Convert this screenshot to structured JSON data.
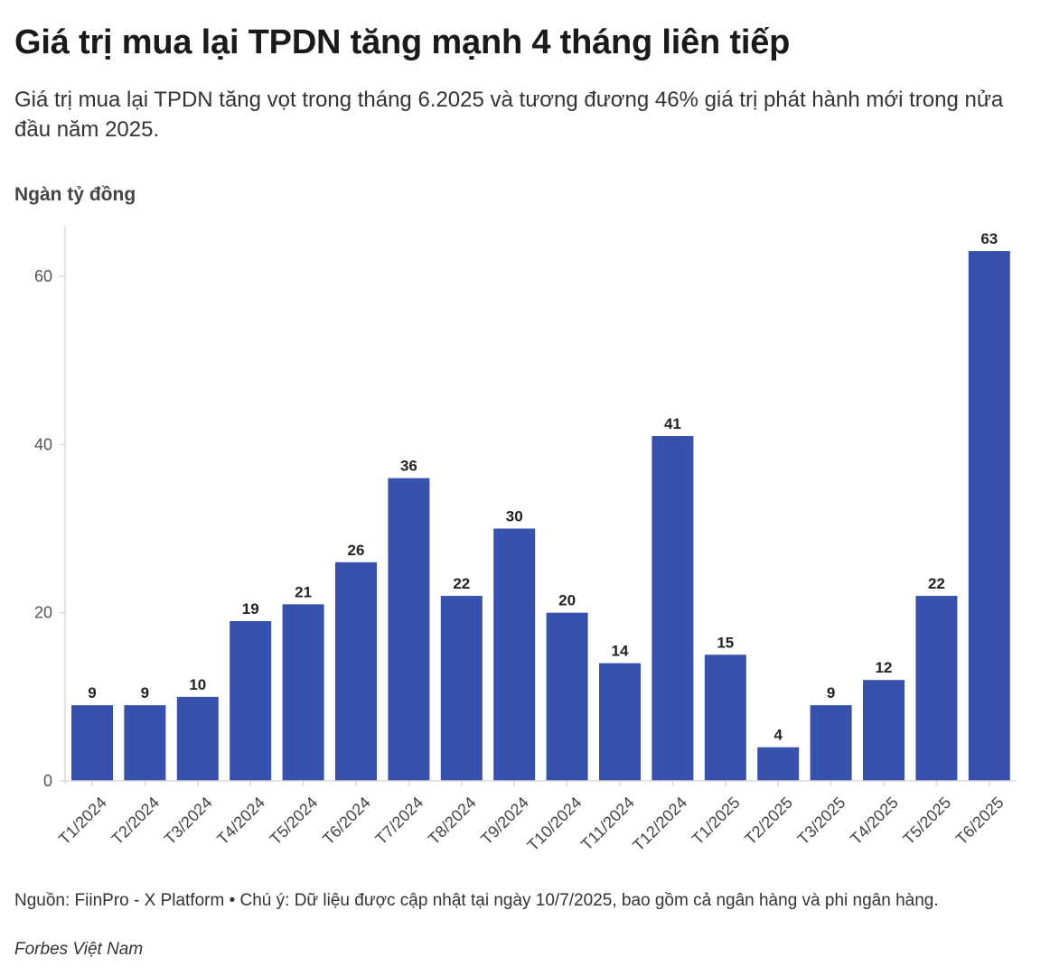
{
  "title": "Giá trị mua lại TPDN tăng mạnh 4 tháng liên tiếp",
  "subtitle": "Giá trị mua lại TPDN tăng vọt trong tháng 6.2025 và tương đương 46% giá trị phát hành mới trong nửa đầu năm 2025.",
  "y_unit_label": "Ngàn tỷ đồng",
  "footer": "Nguồn: FiinPro - X Platform • Chú ý: Dữ liệu được cập nhật tại ngày 10/7/2025, bao gồm cả ngân hàng và phi ngân hàng.",
  "credit": "Forbes Việt Nam",
  "colors": {
    "bar": "#3652AD",
    "axis": "#d8d8d8"
  },
  "chart_data": {
    "type": "bar",
    "categories": [
      "T1/2024",
      "T2/2024",
      "T3/2024",
      "T4/2024",
      "T5/2024",
      "T6/2024",
      "T7/2024",
      "T8/2024",
      "T9/2024",
      "T10/2024",
      "T11/2024",
      "T12/2024",
      "T1/2025",
      "T2/2025",
      "T3/2025",
      "T4/2025",
      "T5/2025",
      "T6/2025"
    ],
    "values": [
      9,
      9,
      10,
      19,
      21,
      26,
      36,
      22,
      30,
      20,
      14,
      41,
      15,
      4,
      9,
      12,
      22,
      63
    ],
    "ylabel": "Ngàn tỷ đồng",
    "yticks": [
      0,
      20,
      40,
      60
    ],
    "ylim": [
      0,
      66
    ],
    "grid": false,
    "data_labels": true
  }
}
